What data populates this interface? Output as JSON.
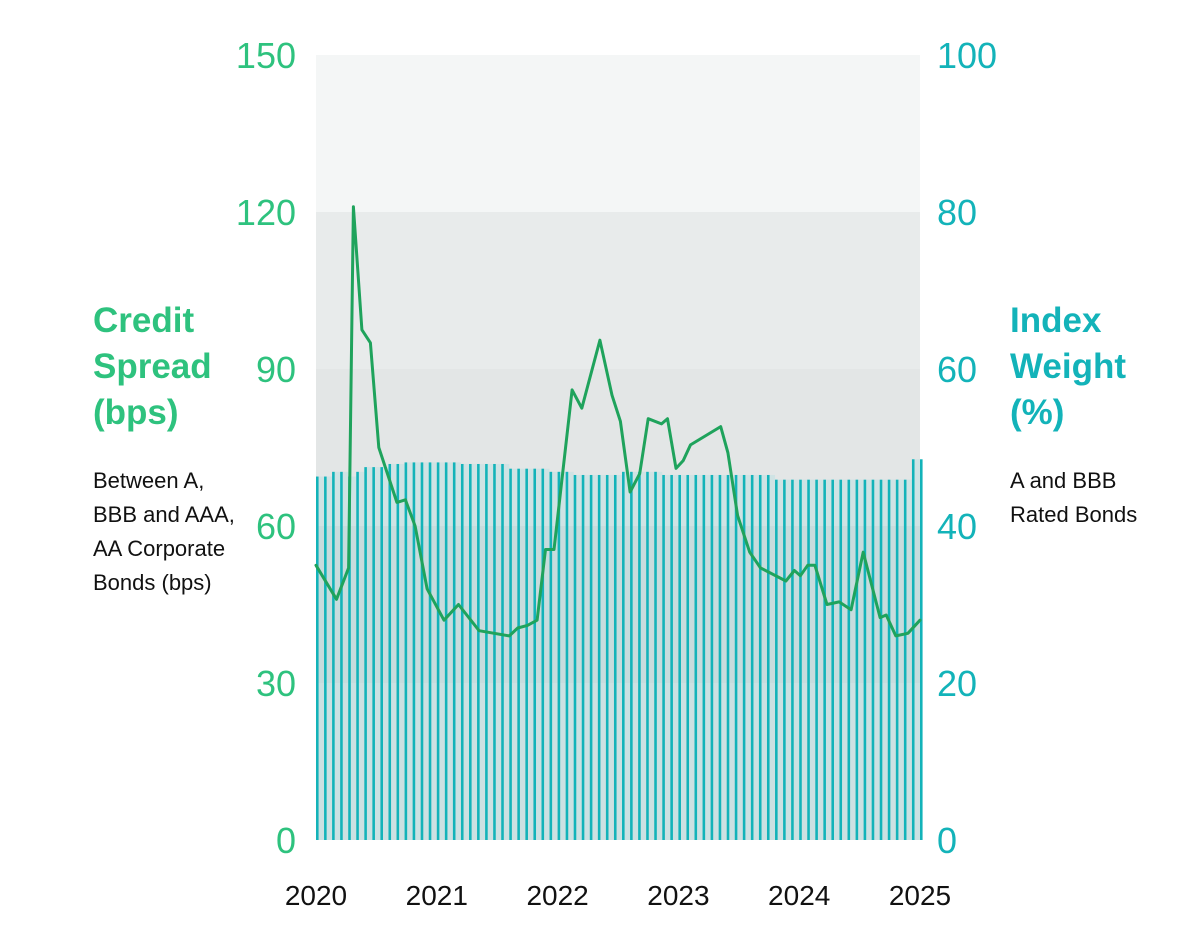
{
  "left_axis": {
    "label_lines": [
      "Credit",
      "Spread",
      "(bps)"
    ],
    "note_lines": [
      "Between A,",
      "BBB and AAA,",
      "AA Corporate",
      "Bonds (bps)"
    ],
    "color": "#2ec27e"
  },
  "right_axis": {
    "label_lines": [
      "Index",
      "Weight",
      "(%)"
    ],
    "note_lines": [
      "A and BBB",
      "Rated Bonds"
    ],
    "color": "#13b3b9"
  },
  "chart_data": {
    "type": "bar+line",
    "title": "",
    "x_ticks": [
      "2020",
      "2021",
      "2022",
      "2023",
      "2024",
      "2025"
    ],
    "xlim": [
      2020.0,
      2025.0
    ],
    "left_ylim": [
      0,
      150
    ],
    "left_yticks": [
      0,
      30,
      60,
      90,
      120,
      150
    ],
    "right_ylim": [
      0,
      100
    ],
    "right_yticks": [
      0,
      20,
      40,
      60,
      80,
      100
    ],
    "background_bands": [
      "#dfe3e3",
      "#d8dcdc",
      "#e3e6e6",
      "#e8ebeb",
      "#f4f6f6"
    ],
    "grid": false,
    "series": [
      {
        "name": "Index Weight (%)",
        "type": "bar",
        "axis": "right",
        "color": "#13b3b9",
        "bar_fill_color": "#a9dce0",
        "x": [
          2020.0,
          2020.0667,
          2020.1333,
          2020.2,
          2020.2667,
          2020.3333,
          2020.4,
          2020.4667,
          2020.5333,
          2020.6,
          2020.6667,
          2020.7333,
          2020.8,
          2020.8667,
          2020.9333,
          2021.0,
          2021.0667,
          2021.1333,
          2021.2,
          2021.2667,
          2021.3333,
          2021.4,
          2021.4667,
          2021.5333,
          2021.6,
          2021.6667,
          2021.7333,
          2021.8,
          2021.8667,
          2021.9333,
          2022.0,
          2022.0667,
          2022.1333,
          2022.2,
          2022.2667,
          2022.3333,
          2022.4,
          2022.4667,
          2022.5333,
          2022.6,
          2022.6667,
          2022.7333,
          2022.8,
          2022.8667,
          2022.9333,
          2023.0,
          2023.0667,
          2023.1333,
          2023.2,
          2023.2667,
          2023.3333,
          2023.4,
          2023.4667,
          2023.5333,
          2023.6,
          2023.6667,
          2023.7333,
          2023.8,
          2023.8667,
          2023.9333,
          2024.0,
          2024.0667,
          2024.1333,
          2024.2,
          2024.2667,
          2024.3333,
          2024.4,
          2024.4667,
          2024.5333,
          2024.6,
          2024.6667,
          2024.7333,
          2024.8,
          2024.8667,
          2024.9333,
          2025.0
        ],
        "values": [
          46.3,
          46.3,
          46.9,
          46.9,
          46.3,
          46.9,
          47.5,
          47.5,
          47.5,
          47.9,
          47.9,
          48.1,
          48.1,
          48.1,
          48.1,
          48.1,
          48.1,
          48.1,
          47.9,
          47.9,
          47.9,
          47.9,
          47.9,
          47.9,
          47.3,
          47.3,
          47.3,
          47.3,
          47.3,
          46.9,
          46.9,
          46.9,
          46.5,
          46.5,
          46.5,
          46.5,
          46.5,
          46.5,
          46.9,
          46.9,
          46.9,
          46.9,
          46.9,
          46.5,
          46.5,
          46.5,
          46.5,
          46.5,
          46.5,
          46.5,
          46.5,
          46.5,
          46.5,
          46.5,
          46.5,
          46.5,
          46.5,
          45.9,
          45.9,
          45.9,
          45.9,
          45.9,
          45.9,
          45.9,
          45.9,
          45.9,
          45.9,
          45.9,
          45.9,
          45.9,
          45.9,
          45.9,
          45.9,
          45.9,
          48.5,
          48.5
        ]
      },
      {
        "name": "Credit Spread (bps)",
        "type": "line",
        "axis": "left",
        "color": "#1fa35c",
        "x": [
          2020.0,
          2020.17,
          2020.27,
          2020.31,
          2020.38,
          2020.45,
          2020.52,
          2020.67,
          2020.74,
          2020.82,
          2020.92,
          2021.06,
          2021.18,
          2021.35,
          2021.6,
          2021.67,
          2021.75,
          2021.83,
          2021.9,
          2021.97,
          2022.12,
          2022.2,
          2022.35,
          2022.45,
          2022.52,
          2022.6,
          2022.68,
          2022.75,
          2022.86,
          2022.91,
          2022.98,
          2023.04,
          2023.1,
          2023.35,
          2023.41,
          2023.49,
          2023.59,
          2023.68,
          2023.89,
          2023.96,
          2024.01,
          2024.07,
          2024.13,
          2024.23,
          2024.33,
          2024.43,
          2024.53,
          2024.67,
          2024.72,
          2024.8,
          2024.9,
          2025.0
        ],
        "values": [
          52.5,
          46.0,
          52.0,
          121.0,
          97.5,
          95.0,
          75.0,
          64.5,
          65.0,
          60.0,
          48.0,
          42.0,
          45.0,
          40.0,
          39.0,
          40.5,
          41.0,
          42.0,
          55.5,
          55.5,
          86.0,
          82.5,
          95.5,
          85.0,
          80.0,
          66.5,
          70.0,
          80.5,
          79.5,
          80.5,
          71.0,
          72.5,
          75.5,
          79.0,
          74.0,
          62.0,
          55.0,
          52.0,
          49.5,
          51.5,
          50.5,
          52.5,
          52.5,
          45.0,
          45.5,
          44.0,
          55.0,
          42.5,
          43.0,
          39.0,
          39.5,
          42.0
        ]
      }
    ]
  }
}
